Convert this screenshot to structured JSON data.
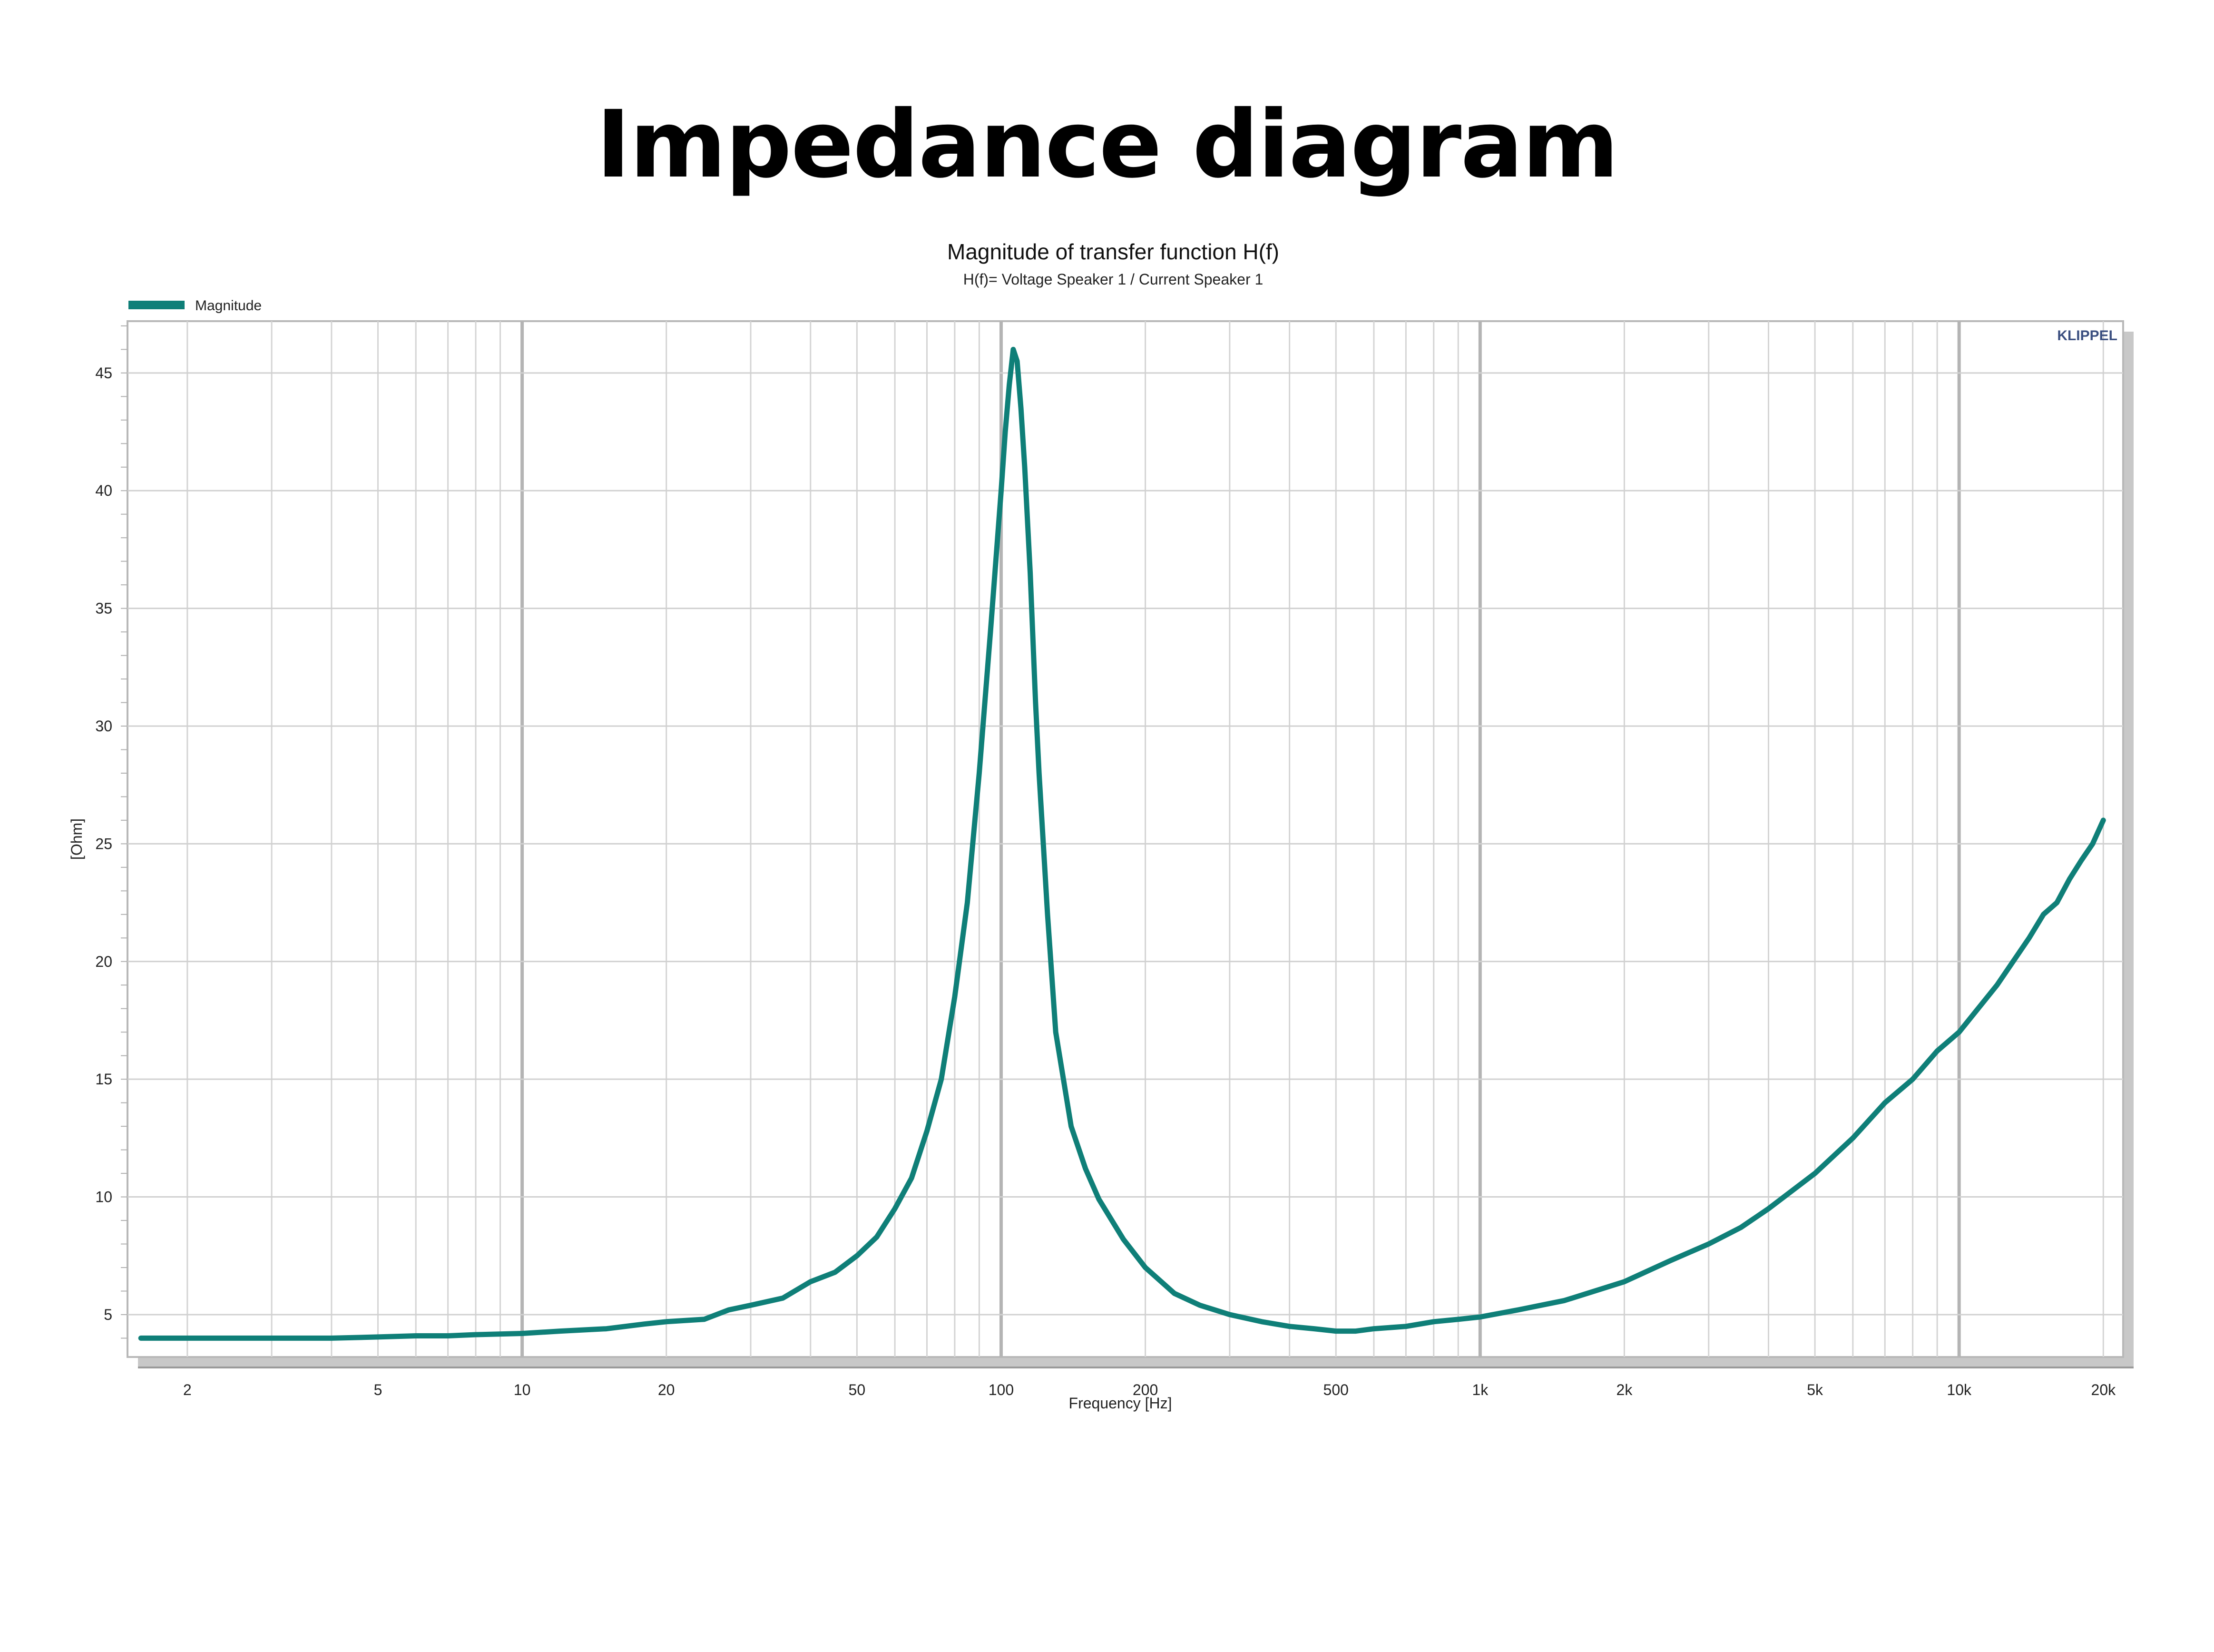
{
  "page": {
    "headline": "Impedance diagram"
  },
  "chart_data": {
    "type": "line",
    "title": "Magnitude of transfer function H(f)",
    "subtitle": "H(f)= Voltage Speaker 1 / Current Speaker 1",
    "xlabel": "Frequency [Hz]",
    "ylabel": "[Ohm]",
    "x_scale": "log",
    "xlim": [
      1.5,
      22000
    ],
    "ylim": [
      3.2,
      47.2
    ],
    "x_ticks": [
      {
        "value": 2,
        "label": "2"
      },
      {
        "value": 5,
        "label": "5"
      },
      {
        "value": 10,
        "label": "10"
      },
      {
        "value": 20,
        "label": "20"
      },
      {
        "value": 50,
        "label": "50"
      },
      {
        "value": 100,
        "label": "100"
      },
      {
        "value": 200,
        "label": "200"
      },
      {
        "value": 500,
        "label": "500"
      },
      {
        "value": 1000,
        "label": "1k"
      },
      {
        "value": 2000,
        "label": "2k"
      },
      {
        "value": 5000,
        "label": "5k"
      },
      {
        "value": 10000,
        "label": "10k"
      },
      {
        "value": 20000,
        "label": "20k"
      }
    ],
    "y_ticks": [
      5,
      10,
      15,
      20,
      25,
      30,
      35,
      40,
      45
    ],
    "grid": true,
    "legend_position": "top-left",
    "watermark": "KLIPPEL",
    "series": [
      {
        "name": "Magnitude",
        "color": "#0f7f78",
        "x": [
          1.6,
          2,
          3,
          4,
          5,
          6,
          7,
          8,
          10,
          12,
          15,
          18,
          20,
          24,
          27,
          30,
          35,
          40,
          45,
          50,
          55,
          60,
          65,
          70,
          75,
          80,
          85,
          90,
          95,
          100,
          102,
          104,
          106,
          108,
          110,
          112,
          115,
          118,
          120,
          125,
          130,
          140,
          150,
          160,
          180,
          200,
          230,
          260,
          300,
          350,
          400,
          450,
          500,
          550,
          600,
          700,
          800,
          900,
          1000,
          1200,
          1500,
          2000,
          2500,
          3000,
          3500,
          4000,
          5000,
          6000,
          7000,
          8000,
          9000,
          10000,
          12000,
          14000,
          15000,
          16000,
          17000,
          18000,
          19000,
          20000
        ],
        "y": [
          4.0,
          4.0,
          4.0,
          4.0,
          4.05,
          4.1,
          4.1,
          4.15,
          4.2,
          4.3,
          4.4,
          4.6,
          4.7,
          4.8,
          5.2,
          5.4,
          5.7,
          6.4,
          6.8,
          7.5,
          8.3,
          9.5,
          10.8,
          12.8,
          15.0,
          18.5,
          22.5,
          28.0,
          34.0,
          40.0,
          42.5,
          44.5,
          46.0,
          45.5,
          43.5,
          41.0,
          36.5,
          31.0,
          28.0,
          22.0,
          17.0,
          13.0,
          11.2,
          9.9,
          8.2,
          7.0,
          5.9,
          5.4,
          5.0,
          4.7,
          4.5,
          4.4,
          4.3,
          4.3,
          4.4,
          4.5,
          4.7,
          4.8,
          4.9,
          5.2,
          5.6,
          6.4,
          7.3,
          8.0,
          8.7,
          9.5,
          11.0,
          12.5,
          14.0,
          15.0,
          16.2,
          17.0,
          19.0,
          21.0,
          22.0,
          22.5,
          23.5,
          24.3,
          25.0,
          26.0
        ]
      }
    ]
  }
}
